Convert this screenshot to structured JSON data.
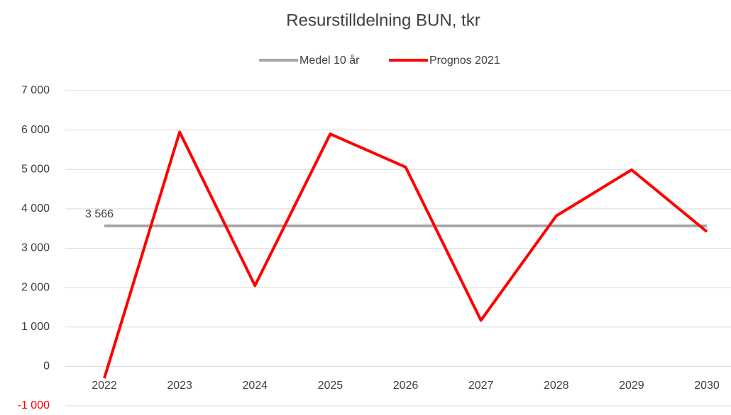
{
  "chart_data": {
    "type": "line",
    "title": "Resurstilldelning BUN, tkr",
    "categories": [
      "2022",
      "2023",
      "2024",
      "2025",
      "2026",
      "2027",
      "2028",
      "2029",
      "2030"
    ],
    "series": [
      {
        "name": "Medel 10 år",
        "color": "#a6a6a6",
        "values": [
          3566,
          3566,
          3566,
          3566,
          3566,
          3566,
          3566,
          3566,
          3566
        ],
        "value_labels": [
          "3 566",
          null,
          null,
          null,
          null,
          null,
          null,
          null,
          null
        ]
      },
      {
        "name": "Prognos 2021",
        "color": "#ff0000",
        "values": [
          -300,
          5950,
          2050,
          5900,
          5060,
          1170,
          3820,
          4990,
          3420
        ]
      }
    ],
    "ylim": [
      -1000,
      7000
    ],
    "yticks": [
      {
        "value": -1000,
        "label": "-1 000"
      },
      0,
      {
        "value": 1000,
        "label": "1 000"
      },
      {
        "value": 2000,
        "label": "2 000"
      },
      {
        "value": 3000,
        "label": "3 000"
      },
      {
        "value": 4000,
        "label": "4 000"
      },
      {
        "value": 5000,
        "label": "5 000"
      },
      {
        "value": 6000,
        "label": "6 000"
      },
      {
        "value": 7000,
        "label": "7 000"
      }
    ],
    "negative_tick_color": "#ff0000",
    "grid": true,
    "legend": "top"
  }
}
